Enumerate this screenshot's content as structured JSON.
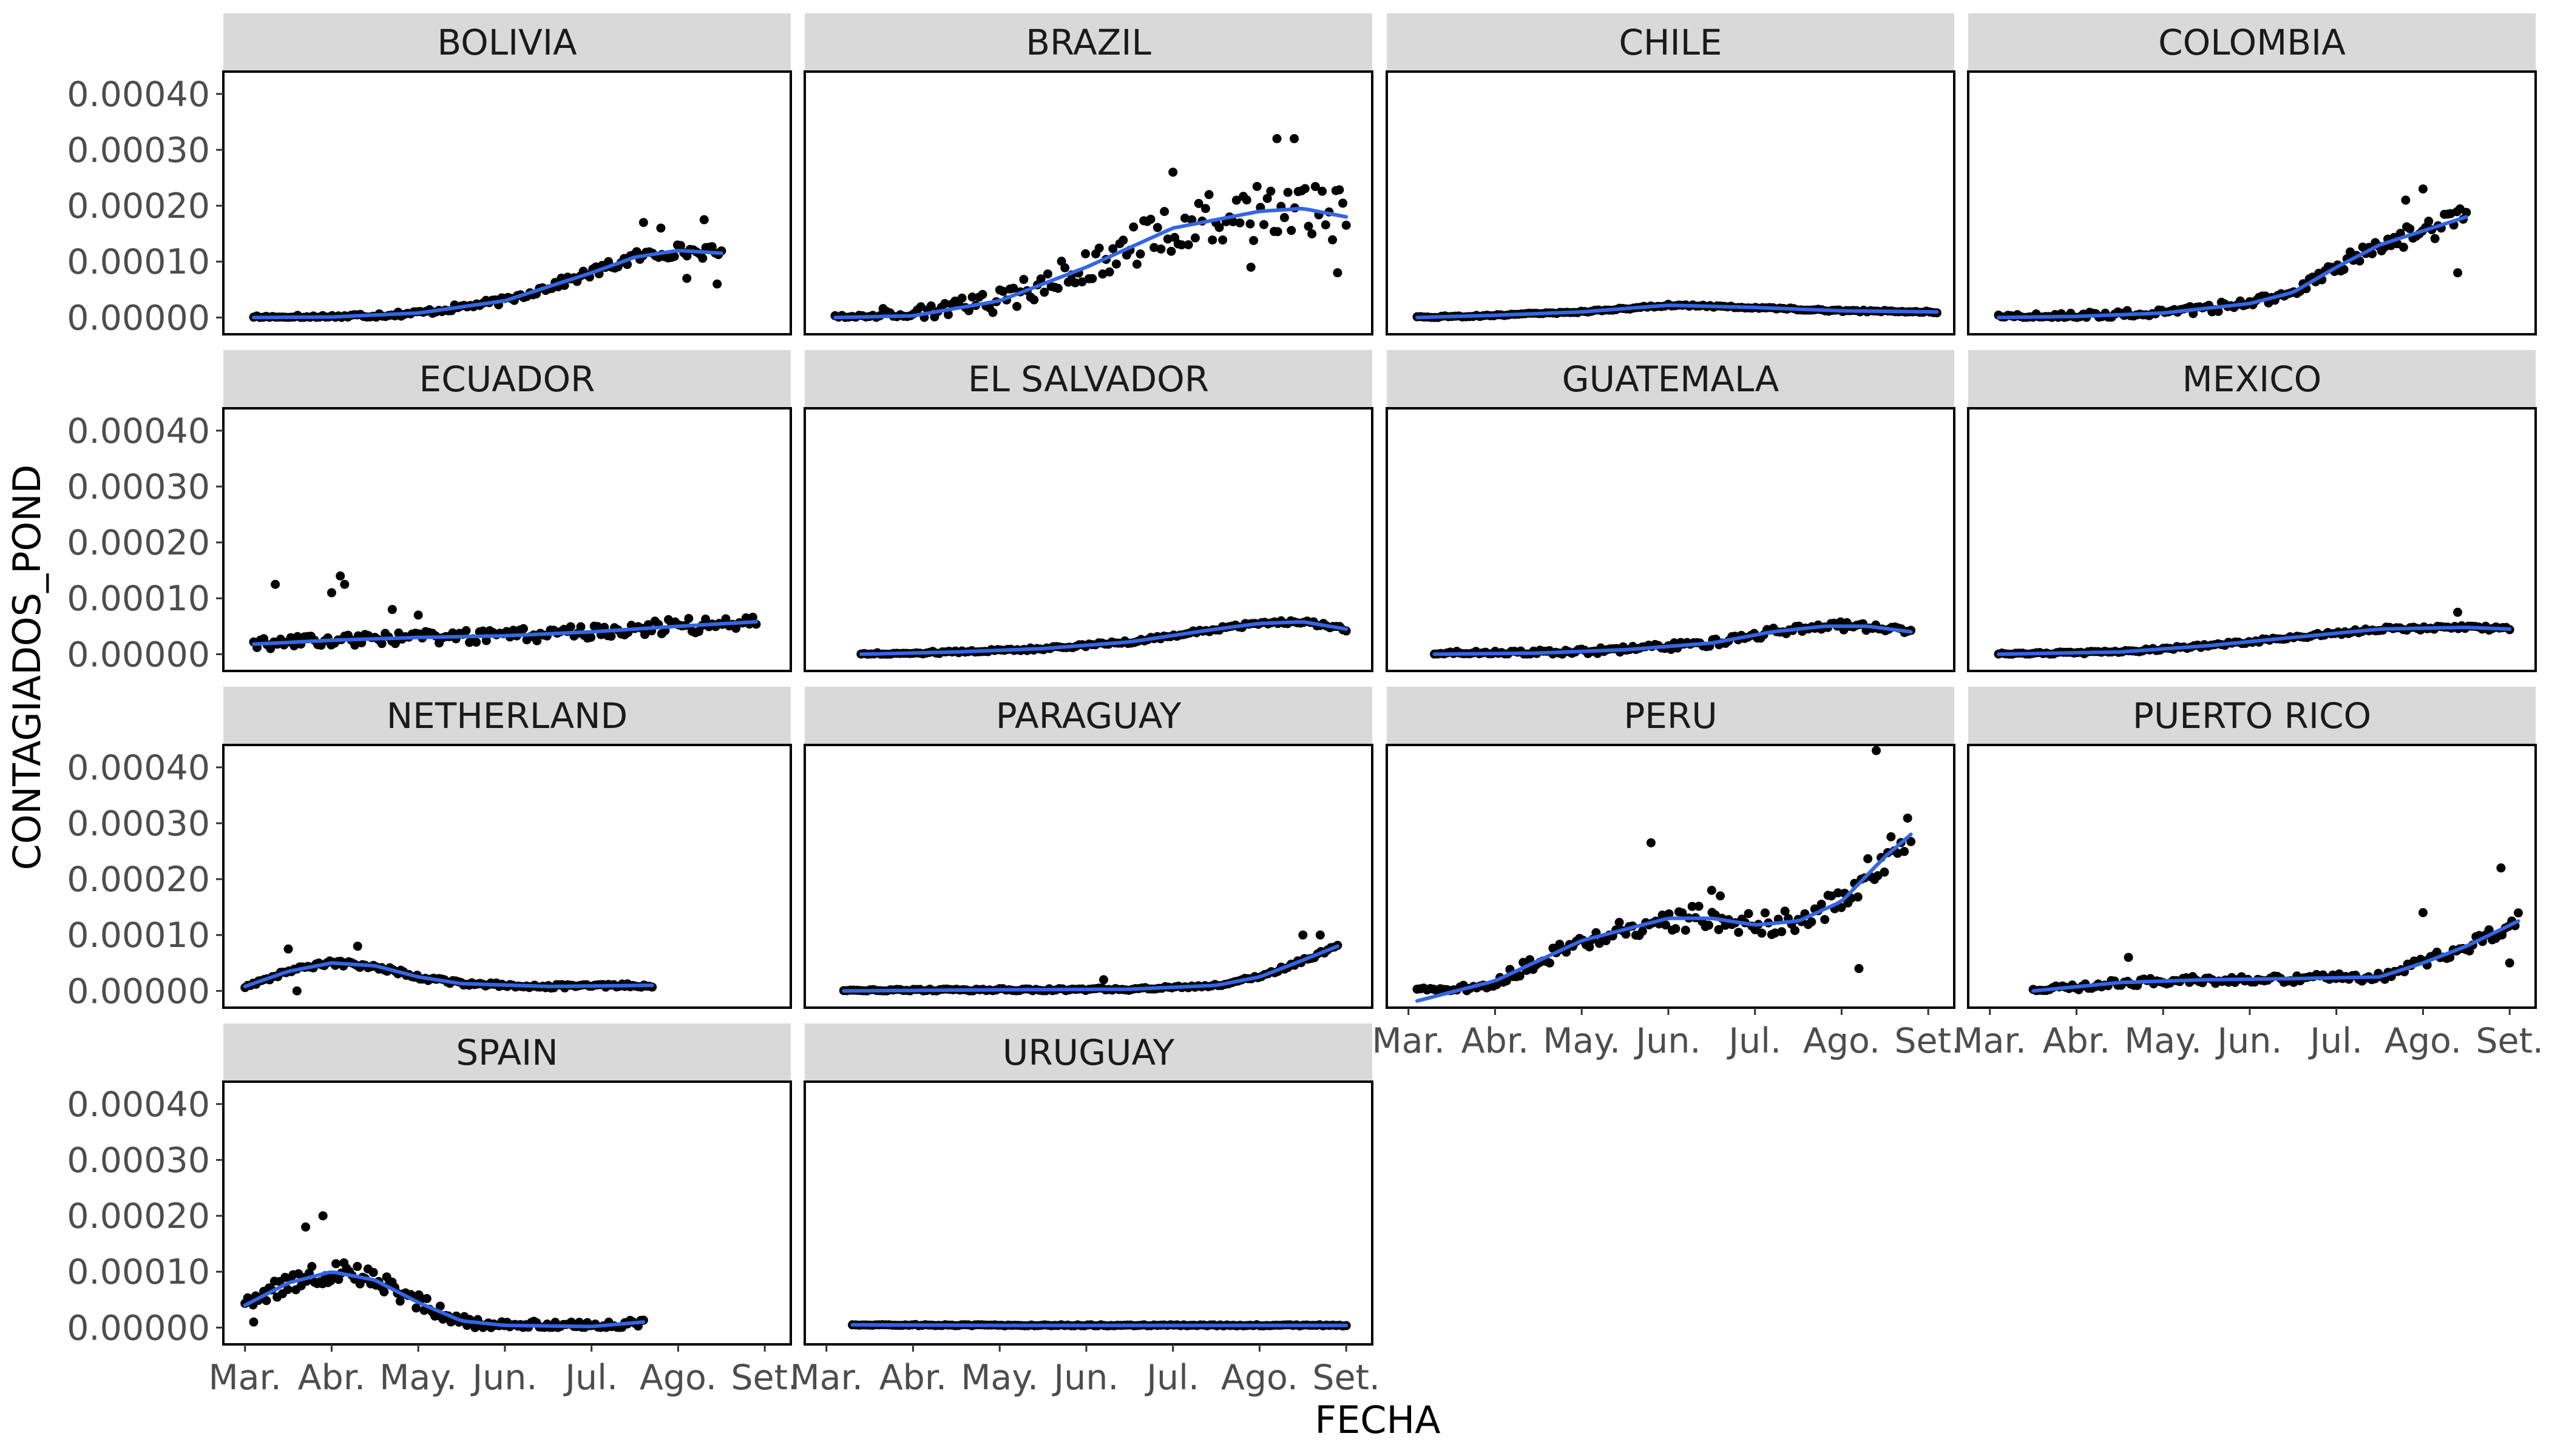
{
  "colors": {
    "points": "#000000",
    "smooth": "#3366e6",
    "strip": "#d9d9d9",
    "frame": "#000000"
  },
  "chart_data": {
    "type": "scatter",
    "xlabel": "FECHA",
    "ylabel": "CONTAGIADOS_POND",
    "x_unit": "month index (0 = Mar.)",
    "xlim": [
      -0.25,
      6.3
    ],
    "ylim": [
      -3e-05,
      0.00044
    ],
    "x_ticks": [
      {
        "value": 0,
        "label": "Mar."
      },
      {
        "value": 1,
        "label": "Abr."
      },
      {
        "value": 2,
        "label": "May."
      },
      {
        "value": 3,
        "label": "Jun."
      },
      {
        "value": 4,
        "label": "Jul."
      },
      {
        "value": 5,
        "label": "Ago."
      },
      {
        "value": 6,
        "label": "Set."
      }
    ],
    "y_ticks": [
      {
        "value": 0.0,
        "label": "0.00000"
      },
      {
        "value": 0.0001,
        "label": "0.00010"
      },
      {
        "value": 0.0002,
        "label": "0.00020"
      },
      {
        "value": 0.0003,
        "label": "0.00030"
      },
      {
        "value": 0.0004,
        "label": "0.00040"
      }
    ],
    "panels": [
      {
        "name": "BOLIVIA",
        "x_range": [
          0.1,
          5.5
        ],
        "spread": 1.2e-05,
        "smooth": [
          [
            0.1,
            0
          ],
          [
            1,
            1e-06
          ],
          [
            2,
            8e-06
          ],
          [
            3,
            3e-05
          ],
          [
            3.5,
            5.5e-05
          ],
          [
            4,
            8e-05
          ],
          [
            4.5,
            0.000108
          ],
          [
            5,
            0.00012
          ],
          [
            5.5,
            0.000115
          ]
        ],
        "outliers": [
          [
            4.6,
            0.00017
          ],
          [
            4.8,
            0.00016
          ],
          [
            5.3,
            0.000175
          ],
          [
            5.45,
            6e-05
          ],
          [
            5.1,
            7e-05
          ]
        ]
      },
      {
        "name": "BRAZIL",
        "x_range": [
          0.1,
          6.0
        ],
        "spread": 4e-05,
        "smooth": [
          [
            0.1,
            0
          ],
          [
            1,
            3e-06
          ],
          [
            2,
            3e-05
          ],
          [
            3,
            9e-05
          ],
          [
            4,
            0.00016
          ],
          [
            5,
            0.00019
          ],
          [
            5.5,
            0.000195
          ],
          [
            6,
            0.00018
          ]
        ],
        "outliers": [
          [
            4.0,
            0.00026
          ],
          [
            5.2,
            0.00032
          ],
          [
            5.4,
            0.00032
          ],
          [
            5.9,
            8e-05
          ],
          [
            4.9,
            9e-05
          ]
        ]
      },
      {
        "name": "CHILE",
        "x_range": [
          0.1,
          6.1
        ],
        "spread": 4e-06,
        "smooth": [
          [
            0.1,
            0
          ],
          [
            1,
            4e-06
          ],
          [
            2,
            1e-05
          ],
          [
            3,
            2.2e-05
          ],
          [
            4,
            1.8e-05
          ],
          [
            5,
            1.2e-05
          ],
          [
            6.1,
            1e-05
          ]
        ],
        "outliers": []
      },
      {
        "name": "COLOMBIA",
        "x_range": [
          0.1,
          5.5
        ],
        "spread": 1.8e-05,
        "smooth": [
          [
            0.1,
            0
          ],
          [
            1,
            2e-06
          ],
          [
            2,
            8e-06
          ],
          [
            3,
            2.5e-05
          ],
          [
            3.5,
            4.5e-05
          ],
          [
            4,
            9e-05
          ],
          [
            4.5,
            0.00013
          ],
          [
            5,
            0.000155
          ],
          [
            5.5,
            0.00018
          ]
        ],
        "outliers": [
          [
            5.0,
            0.00023
          ],
          [
            5.4,
            8e-05
          ],
          [
            4.8,
            0.00021
          ]
        ]
      },
      {
        "name": "ECUADOR",
        "x_range": [
          0.1,
          5.9
        ],
        "spread": 2.2e-05,
        "smooth": [
          [
            0.1,
            1.8e-05
          ],
          [
            1,
            2.5e-05
          ],
          [
            2,
            3e-05
          ],
          [
            3,
            3.3e-05
          ],
          [
            4,
            4e-05
          ],
          [
            5,
            5e-05
          ],
          [
            5.9,
            5.8e-05
          ]
        ],
        "outliers": [
          [
            0.35,
            0.000125
          ],
          [
            1.1,
            0.00014
          ],
          [
            1.15,
            0.000125
          ],
          [
            1.0,
            0.00011
          ],
          [
            2.0,
            7e-05
          ],
          [
            1.7,
            8e-05
          ]
        ]
      },
      {
        "name": "EL SALVADOR",
        "x_range": [
          0.4,
          6.0
        ],
        "spread": 6e-06,
        "smooth": [
          [
            0.4,
            0
          ],
          [
            1.5,
            4e-06
          ],
          [
            2.5,
            1e-05
          ],
          [
            3.5,
            2.2e-05
          ],
          [
            4.5,
            4.5e-05
          ],
          [
            5,
            5.5e-05
          ],
          [
            5.5,
            5.8e-05
          ],
          [
            6,
            4.5e-05
          ]
        ],
        "outliers": []
      },
      {
        "name": "GUATEMALA",
        "x_range": [
          0.3,
          5.8
        ],
        "spread": 1.4e-05,
        "smooth": [
          [
            0.3,
            0
          ],
          [
            1.5,
            2e-06
          ],
          [
            2.5,
            8e-06
          ],
          [
            3.5,
            2e-05
          ],
          [
            4.2,
            4e-05
          ],
          [
            4.8,
            5e-05
          ],
          [
            5.3,
            5e-05
          ],
          [
            5.8,
            4e-05
          ]
        ],
        "outliers": [
          [
            3.0,
            1.5e-05
          ]
        ]
      },
      {
        "name": "MEXICO",
        "x_range": [
          0.1,
          6.0
        ],
        "spread": 6e-06,
        "smooth": [
          [
            0.1,
            0
          ],
          [
            1.5,
            4e-06
          ],
          [
            2.5,
            1.5e-05
          ],
          [
            3.5,
            3e-05
          ],
          [
            4.5,
            4.5e-05
          ],
          [
            5.5,
            4.8e-05
          ],
          [
            6,
            4.5e-05
          ]
        ],
        "outliers": [
          [
            5.4,
            7.5e-05
          ]
        ]
      },
      {
        "name": "NETHERLAND",
        "x_range": [
          0.0,
          4.7
        ],
        "spread": 8e-06,
        "smooth": [
          [
            0,
            8e-06
          ],
          [
            0.5,
            3.5e-05
          ],
          [
            1,
            5e-05
          ],
          [
            1.5,
            4.5e-05
          ],
          [
            2,
            2.5e-05
          ],
          [
            2.5,
            1.3e-05
          ],
          [
            3.5,
            8e-06
          ],
          [
            4.7,
            1e-05
          ]
        ],
        "outliers": [
          [
            0.5,
            7.5e-05
          ],
          [
            1.3,
            8e-05
          ],
          [
            0.6,
            0.0
          ]
        ]
      },
      {
        "name": "PARAGUAY",
        "x_range": [
          0.2,
          5.9
        ],
        "spread": 6e-06,
        "smooth": [
          [
            0.2,
            0
          ],
          [
            2,
            2e-06
          ],
          [
            3.5,
            3e-06
          ],
          [
            4.5,
            1e-05
          ],
          [
            5,
            2.5e-05
          ],
          [
            5.5,
            5.5e-05
          ],
          [
            5.9,
            8e-05
          ]
        ],
        "outliers": [
          [
            5.5,
            0.0001
          ],
          [
            5.7,
            0.0001
          ],
          [
            3.2,
            2e-05
          ]
        ]
      },
      {
        "name": "PERU",
        "x_range": [
          0.1,
          5.8
        ],
        "spread": 2.2e-05,
        "smooth": [
          [
            0.1,
            -1.8e-05
          ],
          [
            1,
            1.8e-05
          ],
          [
            2,
            9e-05
          ],
          [
            3,
            0.00013
          ],
          [
            3.5,
            0.00013
          ],
          [
            4,
            0.000118
          ],
          [
            4.5,
            0.000125
          ],
          [
            5,
            0.00016
          ],
          [
            5.5,
            0.00024
          ],
          [
            5.8,
            0.00028
          ]
        ],
        "outliers": [
          [
            5.4,
            0.00043
          ],
          [
            2.8,
            0.000265
          ],
          [
            3.5,
            0.00018
          ],
          [
            3.6,
            0.00017
          ],
          [
            5.2,
            4e-05
          ]
        ]
      },
      {
        "name": "PUERTO RICO",
        "x_range": [
          0.5,
          6.1
        ],
        "spread": 1.5e-05,
        "smooth": [
          [
            0.5,
            0
          ],
          [
            1.5,
            1.5e-05
          ],
          [
            2.5,
            2e-05
          ],
          [
            3.5,
            2.2e-05
          ],
          [
            4.5,
            2.5e-05
          ],
          [
            5,
            5e-05
          ],
          [
            5.5,
            8e-05
          ],
          [
            6.1,
            0.000125
          ]
        ],
        "outliers": [
          [
            5.9,
            0.00022
          ],
          [
            5.0,
            0.00014
          ],
          [
            6.0,
            5e-05
          ],
          [
            1.6,
            6e-05
          ]
        ]
      },
      {
        "name": "SPAIN",
        "x_range": [
          0.0,
          4.6
        ],
        "spread": 2.5e-05,
        "smooth": [
          [
            0,
            4e-05
          ],
          [
            0.5,
            8e-05
          ],
          [
            1,
            0.0001
          ],
          [
            1.5,
            8.5e-05
          ],
          [
            2,
            4.5e-05
          ],
          [
            2.5,
            1.2e-05
          ],
          [
            3,
            4e-06
          ],
          [
            4,
            2e-06
          ],
          [
            4.6,
            1e-05
          ]
        ],
        "outliers": [
          [
            0.9,
            0.0002
          ],
          [
            0.7,
            0.00018
          ],
          [
            0.1,
            1e-05
          ]
        ]
      },
      {
        "name": "URUGUAY",
        "x_range": [
          0.3,
          6.0
        ],
        "spread": 3e-06,
        "smooth": [
          [
            0.3,
            5e-06
          ],
          [
            2,
            4e-06
          ],
          [
            4,
            4e-06
          ],
          [
            6,
            4e-06
          ]
        ],
        "outliers": []
      }
    ]
  }
}
